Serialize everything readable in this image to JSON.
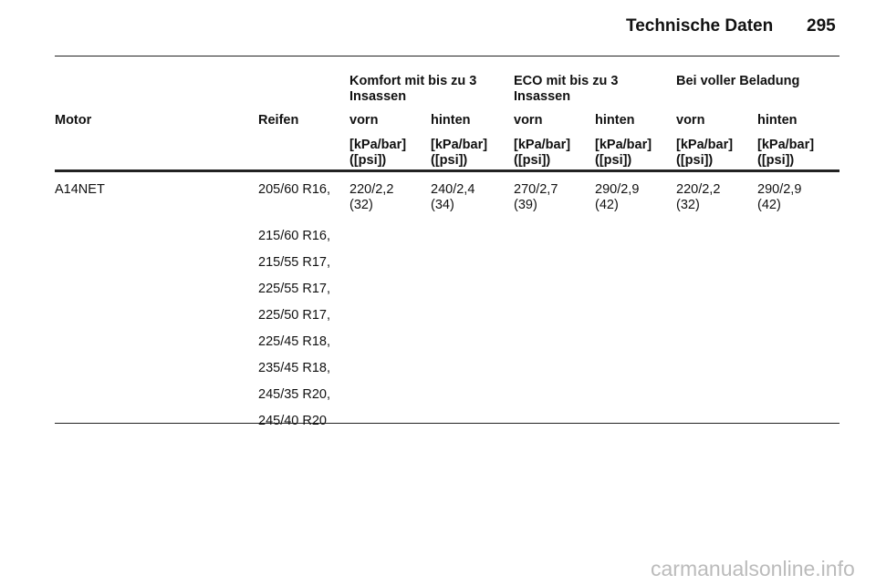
{
  "header": {
    "title": "Technische Daten",
    "page": "295"
  },
  "table": {
    "groups": [
      "Komfort mit bis zu 3 Insassen",
      "ECO mit bis zu 3 Insassen",
      "Bei voller Beladung"
    ],
    "columns": [
      "Motor",
      "Reifen",
      "vorn",
      "hinten",
      "vorn",
      "hinten",
      "vorn",
      "hinten"
    ],
    "units": [
      "[kPa/bar] ([psi])",
      "[kPa/bar] ([psi])",
      "[kPa/bar] ([psi])",
      "[kPa/bar] ([psi])",
      "[kPa/bar] ([psi])",
      "[kPa/bar] ([psi])"
    ],
    "rows": [
      {
        "motor": "A14NET",
        "tyres": [
          "205/60 R16,",
          "215/60 R16,",
          "215/55 R17,",
          "225/55 R17,",
          "225/50 R17,",
          "225/45 R18,",
          "235/45 R18,",
          "245/35 R20,",
          "245/40 R20"
        ],
        "values": [
          "220/2,2 (32)",
          "240/2,4 (34)",
          "270/2,7 (39)",
          "290/2,9 (42)",
          "220/2,2 (32)",
          "290/2,9 (42)"
        ]
      }
    ]
  },
  "watermark": "carmanualsonline.info"
}
